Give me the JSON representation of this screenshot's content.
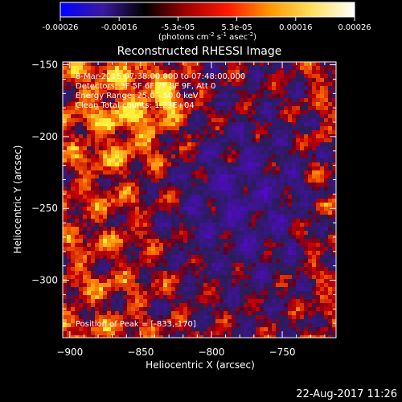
{
  "colorbar": {
    "ticks": [
      "-0.00026",
      "-0.00016",
      "-5.3e-05",
      "5.3e-05",
      "0.00016",
      "0.00026"
    ],
    "label_main": "(photons cm",
    "label_exp1": "-2",
    "label_mid1": " s",
    "label_exp2": "-1",
    "label_mid2": " asec",
    "label_exp3": "-2",
    "label_end": ")",
    "stops": [
      "#0000ff",
      "#3a1aa0",
      "#000000",
      "#a00000",
      "#ff1a00",
      "#ff9a00",
      "#ffe060",
      "#ffffff"
    ]
  },
  "chart_data": {
    "type": "heatmap",
    "title": "Reconstructed RHESSI Image",
    "xlabel": "Heliocentric X (arcsec)",
    "ylabel": "Heliocentric Y (arcsec)",
    "xlim": [
      -905,
      -712
    ],
    "ylim": [
      -340,
      -148
    ],
    "x_ticks": [
      -900,
      -850,
      -800,
      -750
    ],
    "y_ticks": [
      -150,
      -200,
      -250,
      -300
    ],
    "x_tick_labels": [
      "−900",
      "−850",
      "−800",
      "−750"
    ],
    "y_tick_labels": [
      "−150",
      "−200",
      "−250",
      "−300"
    ],
    "value_range": [
      -0.00026,
      0.00026
    ],
    "peak": [
      -833,
      -170
    ],
    "annotations": [
      "8-Mar-2015 07:38:00.000 to 07:48:00.000",
      "Detectors: 3F 5F 6F 7F 8F 9F, Att 0",
      "Energy Range: 25.0 - 50.0 keV",
      "Clean     Total counts: 1.23E+04"
    ],
    "peak_label": "Position of Peak = [-833,-170]"
  },
  "footer": {
    "date": "22-Aug-2017 11:26"
  }
}
